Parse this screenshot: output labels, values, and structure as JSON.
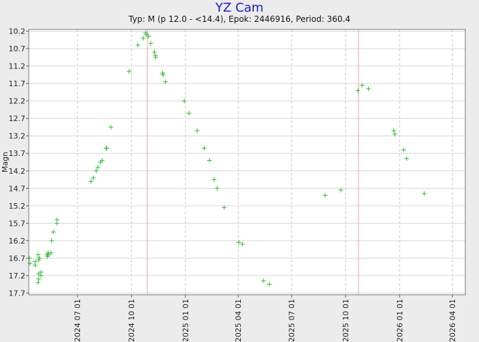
{
  "chart_data": {
    "type": "scatter",
    "title": "YZ Cam",
    "subtitle": "Typ: M (p 12.0 - <14.4), Epok: 2446916, Period: 360.4",
    "ylabel": "Magn",
    "xlabel": "",
    "y_inverted": true,
    "ylim": [
      10.15,
      17.75
    ],
    "xlim": [
      "2024-04-09",
      "2026-04-23"
    ],
    "grid": true,
    "y_ticks": [
      "10.2",
      "10.7",
      "11.2",
      "11.7",
      "12.2",
      "12.7",
      "13.2",
      "13.7",
      "14.2",
      "14.7",
      "15.2",
      "15.7",
      "16.2",
      "16.7",
      "17.2",
      "17.7"
    ],
    "x_ticks": [
      "2024 07 01",
      "2024 10 01",
      "2025 01 01",
      "2025 04 01",
      "2025 07 01",
      "2025 10 01",
      "2026 01 01",
      "2026 04 01"
    ],
    "maxima_dates": [
      "2024-10-28",
      "2025-10-23"
    ],
    "marker": "+",
    "series_color": "#33bb33",
    "marker_color": "#33bb33",
    "points": [
      {
        "x": "2024-04-10",
        "y": 16.7
      },
      {
        "x": "2024-04-11",
        "y": 16.85
      },
      {
        "x": "2024-04-20",
        "y": 16.9
      },
      {
        "x": "2024-04-20",
        "y": 16.8
      },
      {
        "x": "2024-04-25",
        "y": 16.6
      },
      {
        "x": "2024-04-26",
        "y": 16.75
      },
      {
        "x": "2024-04-27",
        "y": 16.7
      },
      {
        "x": "2024-04-25",
        "y": 17.4
      },
      {
        "x": "2024-04-26",
        "y": 17.3
      },
      {
        "x": "2024-04-26",
        "y": 17.15
      },
      {
        "x": "2024-04-30",
        "y": 17.2
      },
      {
        "x": "2024-04-30",
        "y": 17.1
      },
      {
        "x": "2024-05-10",
        "y": 16.6
      },
      {
        "x": "2024-05-11",
        "y": 16.65
      },
      {
        "x": "2024-05-13",
        "y": 16.6
      },
      {
        "x": "2024-05-12",
        "y": 16.55
      },
      {
        "x": "2024-05-17",
        "y": 16.55
      },
      {
        "x": "2024-05-18",
        "y": 16.2
      },
      {
        "x": "2024-05-21",
        "y": 15.95
      },
      {
        "x": "2024-05-27",
        "y": 15.7
      },
      {
        "x": "2024-05-27",
        "y": 15.6
      },
      {
        "x": "2024-07-24",
        "y": 14.5
      },
      {
        "x": "2024-07-28",
        "y": 14.4
      },
      {
        "x": "2024-08-02",
        "y": 14.2
      },
      {
        "x": "2024-08-05",
        "y": 14.1
      },
      {
        "x": "2024-08-09",
        "y": 13.95
      },
      {
        "x": "2024-08-12",
        "y": 13.9
      },
      {
        "x": "2024-08-19",
        "y": 13.55
      },
      {
        "x": "2024-08-20",
        "y": 13.55
      },
      {
        "x": "2024-08-27",
        "y": 12.95
      },
      {
        "x": "2024-09-27",
        "y": 11.35
      },
      {
        "x": "2024-10-12",
        "y": 10.6
      },
      {
        "x": "2024-10-21",
        "y": 10.4
      },
      {
        "x": "2024-10-25",
        "y": 10.25
      },
      {
        "x": "2024-10-27",
        "y": 10.3
      },
      {
        "x": "2024-10-30",
        "y": 10.35
      },
      {
        "x": "2024-11-03",
        "y": 10.55
      },
      {
        "x": "2024-11-09",
        "y": 10.8
      },
      {
        "x": "2024-11-11",
        "y": 10.9
      },
      {
        "x": "2024-11-11",
        "y": 10.95
      },
      {
        "x": "2024-11-23",
        "y": 11.4
      },
      {
        "x": "2024-11-24",
        "y": 11.45
      },
      {
        "x": "2024-11-28",
        "y": 11.65
      },
      {
        "x": "2024-12-30",
        "y": 12.2
      },
      {
        "x": "2025-01-07",
        "y": 12.55
      },
      {
        "x": "2025-01-21",
        "y": 13.05
      },
      {
        "x": "2025-02-02",
        "y": 13.55
      },
      {
        "x": "2025-02-11",
        "y": 13.9
      },
      {
        "x": "2025-02-19",
        "y": 14.45
      },
      {
        "x": "2025-02-24",
        "y": 14.7
      },
      {
        "x": "2025-03-08",
        "y": 15.25
      },
      {
        "x": "2025-04-02",
        "y": 16.25
      },
      {
        "x": "2025-04-08",
        "y": 16.3
      },
      {
        "x": "2025-05-14",
        "y": 17.35
      },
      {
        "x": "2025-05-24",
        "y": 17.45
      },
      {
        "x": "2025-08-27",
        "y": 14.9
      },
      {
        "x": "2025-09-23",
        "y": 14.75
      },
      {
        "x": "2025-10-22",
        "y": 11.9
      },
      {
        "x": "2025-10-29",
        "y": 11.75
      },
      {
        "x": "2025-11-09",
        "y": 11.85
      },
      {
        "x": "2025-12-22",
        "y": 13.05
      },
      {
        "x": "2025-12-24",
        "y": 13.15
      },
      {
        "x": "2026-01-08",
        "y": 13.6
      },
      {
        "x": "2026-01-13",
        "y": 13.85
      },
      {
        "x": "2026-02-12",
        "y": 14.85
      }
    ]
  }
}
